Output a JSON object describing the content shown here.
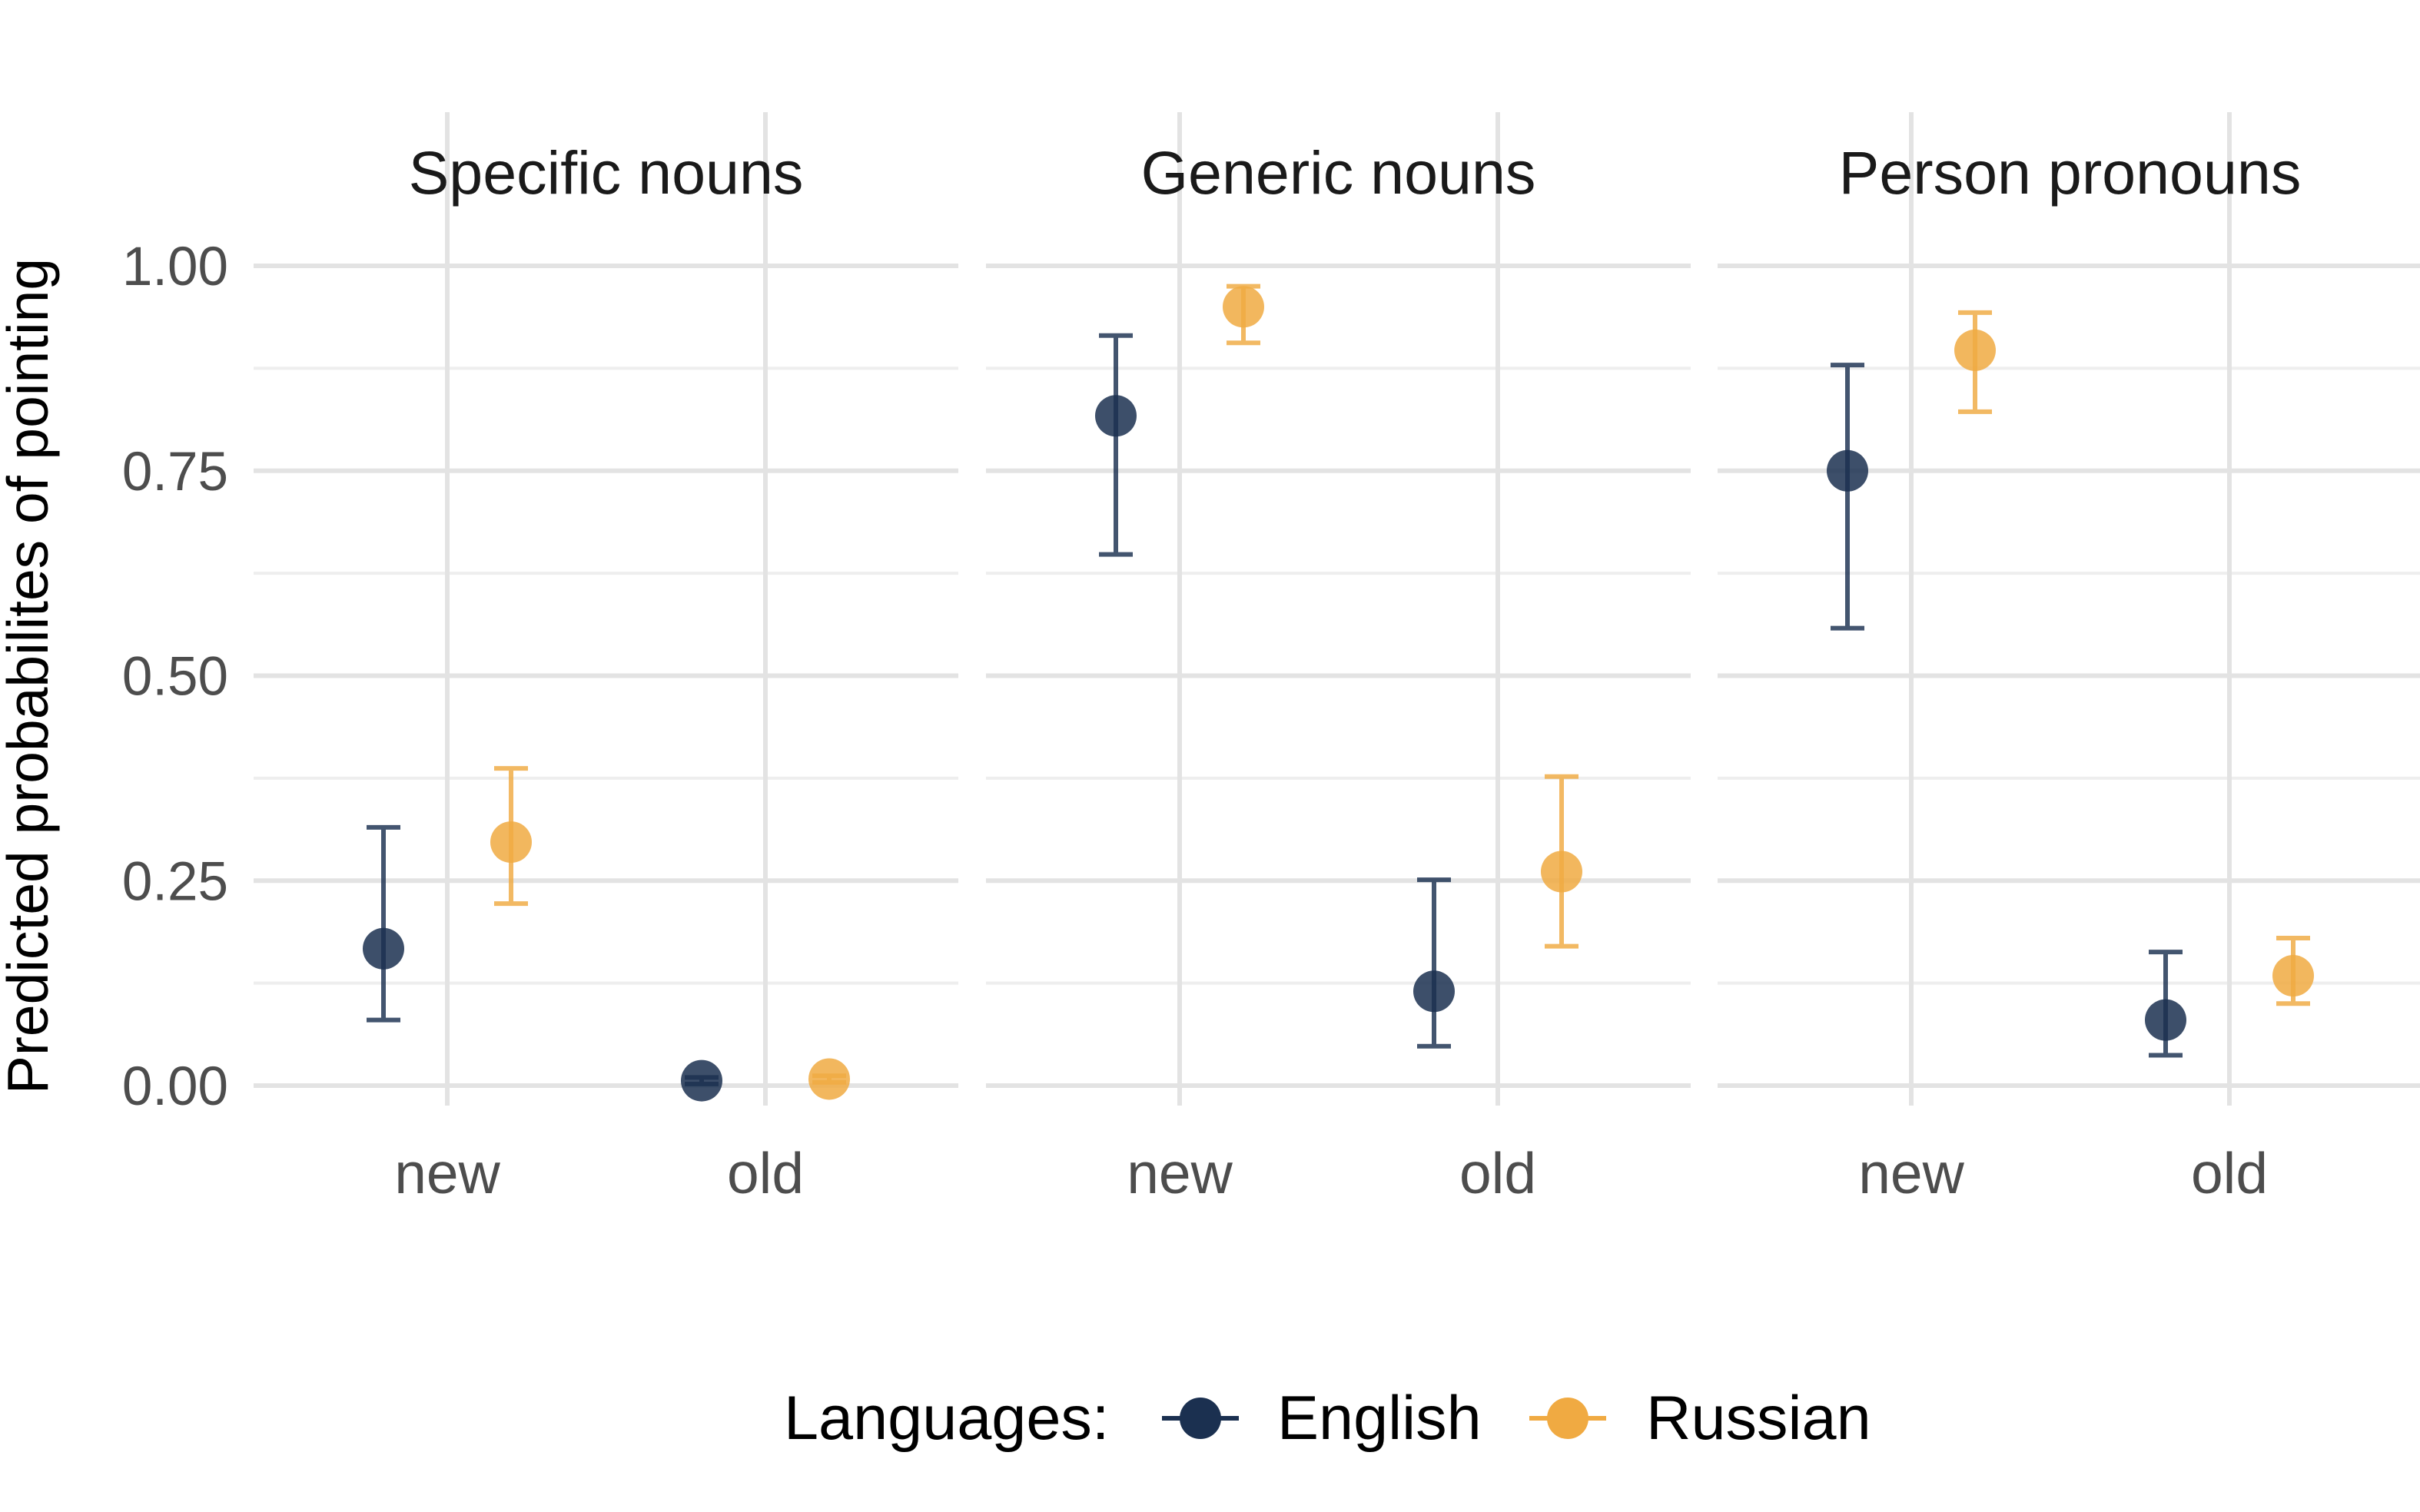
{
  "chart_data": {
    "type": "scatter",
    "ylabel": "Predicted probabilites of pointing",
    "ylim": [
      0,
      1
    ],
    "yticks": [
      "0.00",
      "0.25",
      "0.50",
      "0.75",
      "1.00"
    ],
    "yticks_values": [
      0,
      0.25,
      0.5,
      0.75,
      1.0
    ],
    "categories": [
      "new",
      "old"
    ],
    "grid": true,
    "legend": {
      "title": "Languages:",
      "position": "bottom"
    },
    "series_colors": {
      "English": "#1b3050",
      "Russian": "#f0aa42"
    },
    "panels": [
      {
        "title": "Specific nouns",
        "series": [
          {
            "name": "English",
            "values": [
              0.167,
              0.006
            ],
            "lower": [
              0.08,
              0.002
            ],
            "upper": [
              0.315,
              0.01
            ]
          },
          {
            "name": "Russian",
            "values": [
              0.297,
              0.008
            ],
            "lower": [
              0.222,
              0.004
            ],
            "upper": [
              0.387,
              0.012
            ]
          }
        ]
      },
      {
        "title": "Generic nouns",
        "series": [
          {
            "name": "English",
            "values": [
              0.817,
              0.115
            ],
            "lower": [
              0.648,
              0.048
            ],
            "upper": [
              0.915,
              0.251
            ]
          },
          {
            "name": "Russian",
            "values": [
              0.95,
              0.261
            ],
            "lower": [
              0.906,
              0.17
            ],
            "upper": [
              0.975,
              0.377
            ]
          }
        ]
      },
      {
        "title": "Person pronouns",
        "series": [
          {
            "name": "English",
            "values": [
              0.75,
              0.08
            ],
            "lower": [
              0.558,
              0.037
            ],
            "upper": [
              0.879,
              0.163
            ]
          },
          {
            "name": "Russian",
            "values": [
              0.897,
              0.134
            ],
            "lower": [
              0.822,
              0.1
            ],
            "upper": [
              0.943,
              0.18
            ]
          }
        ]
      }
    ]
  }
}
